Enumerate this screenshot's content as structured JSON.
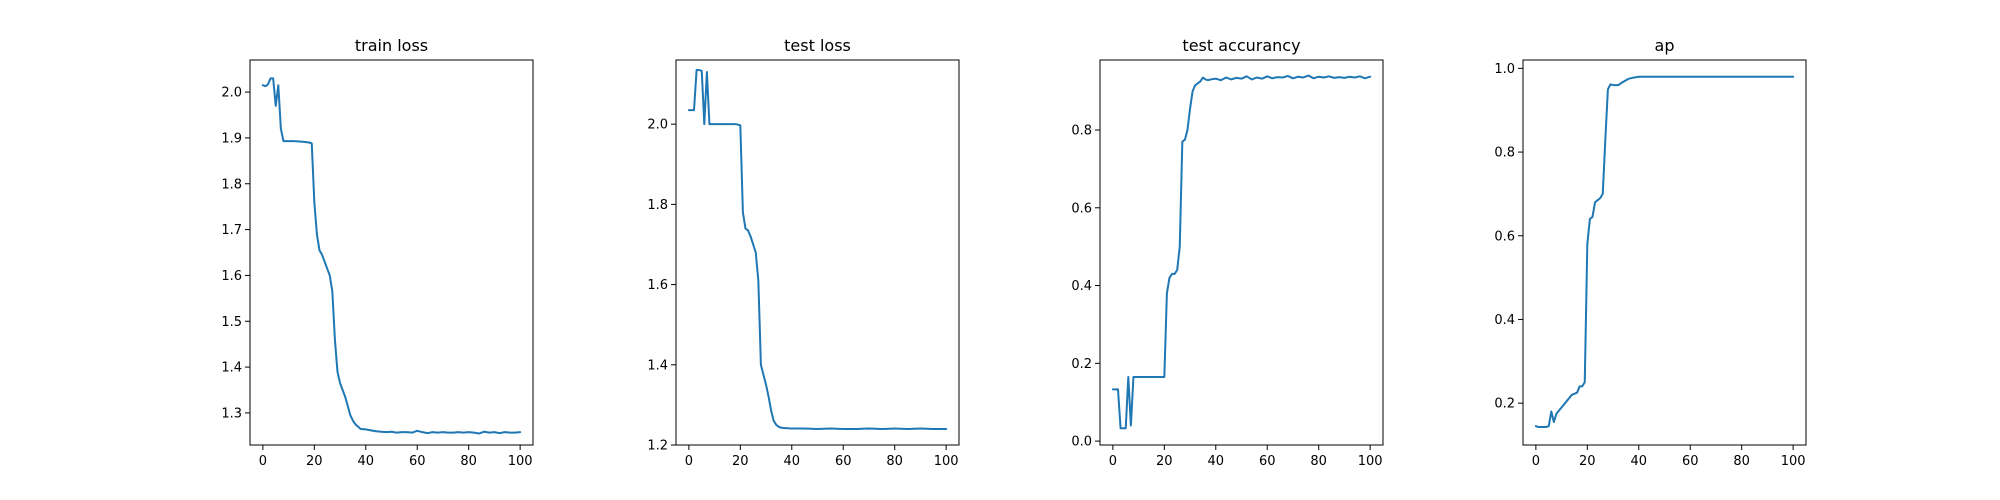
{
  "chart_data": [
    {
      "type": "line",
      "title": "train loss",
      "xlabel": "",
      "ylabel": "",
      "xlim": [
        -5,
        105
      ],
      "ylim": [
        1.23,
        2.07
      ],
      "xticks": [
        0,
        20,
        40,
        60,
        80,
        100
      ],
      "yticks": [
        1.3,
        1.4,
        1.5,
        1.6,
        1.7,
        1.8,
        1.9,
        2.0
      ],
      "tick_precision": 1,
      "grid": false,
      "color": "#1f77b4",
      "x": [
        0,
        1,
        2,
        3,
        4,
        5,
        6,
        7,
        8,
        9,
        10,
        12,
        15,
        18,
        19,
        20,
        21,
        22,
        23,
        24,
        25,
        26,
        27,
        28,
        29,
        30,
        31,
        32,
        33,
        34,
        35,
        36,
        37,
        38,
        40,
        42,
        44,
        46,
        48,
        50,
        52,
        54,
        56,
        58,
        60,
        62,
        64,
        66,
        68,
        70,
        72,
        74,
        76,
        78,
        80,
        82,
        84,
        86,
        88,
        90,
        92,
        94,
        96,
        98,
        100
      ],
      "y": [
        2.015,
        2.013,
        2.017,
        2.03,
        2.03,
        1.97,
        2.015,
        1.92,
        1.893,
        1.893,
        1.893,
        1.893,
        1.892,
        1.89,
        1.888,
        1.76,
        1.69,
        1.655,
        1.645,
        1.63,
        1.615,
        1.6,
        1.565,
        1.46,
        1.39,
        1.365,
        1.35,
        1.335,
        1.315,
        1.295,
        1.283,
        1.275,
        1.27,
        1.265,
        1.264,
        1.262,
        1.26,
        1.259,
        1.258,
        1.259,
        1.257,
        1.258,
        1.258,
        1.257,
        1.261,
        1.258,
        1.256,
        1.258,
        1.257,
        1.258,
        1.257,
        1.257,
        1.258,
        1.257,
        1.258,
        1.257,
        1.255,
        1.259,
        1.257,
        1.258,
        1.256,
        1.258,
        1.257,
        1.257,
        1.258
      ]
    },
    {
      "type": "line",
      "title": "test loss",
      "xlabel": "",
      "ylabel": "",
      "xlim": [
        -5,
        105
      ],
      "ylim": [
        1.2,
        2.16
      ],
      "xticks": [
        0,
        20,
        40,
        60,
        80,
        100
      ],
      "yticks": [
        1.2,
        1.4,
        1.6,
        1.8,
        2.0
      ],
      "tick_precision": 1,
      "grid": false,
      "color": "#1f77b4",
      "x": [
        0,
        1,
        2,
        3,
        4,
        5,
        6,
        7,
        8,
        10,
        12,
        15,
        18,
        19,
        20,
        21,
        22,
        23,
        24,
        25,
        26,
        27,
        28,
        29,
        30,
        31,
        32,
        33,
        34,
        35,
        36,
        37,
        38,
        40,
        45,
        50,
        55,
        60,
        65,
        70,
        75,
        80,
        85,
        90,
        95,
        100
      ],
      "y": [
        2.035,
        2.035,
        2.035,
        2.135,
        2.135,
        2.133,
        2.0,
        2.13,
        2.0,
        2.0,
        2.0,
        2.0,
        2.0,
        1.999,
        1.997,
        1.78,
        1.74,
        1.735,
        1.72,
        1.7,
        1.68,
        1.61,
        1.4,
        1.375,
        1.35,
        1.32,
        1.285,
        1.26,
        1.25,
        1.245,
        1.243,
        1.242,
        1.242,
        1.241,
        1.241,
        1.24,
        1.241,
        1.24,
        1.24,
        1.241,
        1.24,
        1.241,
        1.24,
        1.241,
        1.24,
        1.24
      ]
    },
    {
      "type": "line",
      "title": "test accurancy",
      "xlabel": "",
      "ylabel": "",
      "xlim": [
        -5,
        105
      ],
      "ylim": [
        -0.01,
        0.98
      ],
      "xticks": [
        0,
        20,
        40,
        60,
        80,
        100
      ],
      "yticks": [
        0.0,
        0.2,
        0.4,
        0.6,
        0.8
      ],
      "tick_precision": 1,
      "grid": false,
      "color": "#1f77b4",
      "x": [
        0,
        1,
        2,
        3,
        4,
        5,
        6,
        7,
        8,
        10,
        12,
        15,
        18,
        19,
        20,
        21,
        22,
        23,
        24,
        25,
        26,
        27,
        28,
        29,
        30,
        31,
        32,
        33,
        34,
        35,
        36,
        37,
        38,
        40,
        42,
        44,
        46,
        48,
        50,
        52,
        54,
        56,
        58,
        60,
        62,
        64,
        66,
        68,
        70,
        72,
        74,
        76,
        78,
        80,
        82,
        84,
        86,
        88,
        90,
        92,
        94,
        96,
        98,
        100
      ],
      "y": [
        0.133,
        0.133,
        0.133,
        0.033,
        0.033,
        0.033,
        0.165,
        0.04,
        0.165,
        0.165,
        0.165,
        0.165,
        0.165,
        0.165,
        0.165,
        0.38,
        0.42,
        0.43,
        0.43,
        0.44,
        0.5,
        0.77,
        0.775,
        0.8,
        0.855,
        0.9,
        0.915,
        0.92,
        0.925,
        0.935,
        0.93,
        0.928,
        0.93,
        0.932,
        0.928,
        0.935,
        0.93,
        0.934,
        0.932,
        0.938,
        0.93,
        0.935,
        0.932,
        0.938,
        0.933,
        0.936,
        0.935,
        0.939,
        0.933,
        0.937,
        0.935,
        0.94,
        0.933,
        0.937,
        0.935,
        0.938,
        0.934,
        0.936,
        0.934,
        0.937,
        0.935,
        0.938,
        0.933,
        0.937
      ]
    },
    {
      "type": "line",
      "title": "ap",
      "xlabel": "",
      "ylabel": "",
      "xlim": [
        -5,
        105
      ],
      "ylim": [
        0.1,
        1.02
      ],
      "xticks": [
        0,
        20,
        40,
        60,
        80,
        100
      ],
      "yticks": [
        0.2,
        0.4,
        0.6,
        0.8,
        1.0
      ],
      "tick_precision": 1,
      "grid": false,
      "color": "#1f77b4",
      "x": [
        0,
        1,
        2,
        3,
        4,
        5,
        6,
        7,
        8,
        10,
        12,
        14,
        16,
        17,
        18,
        19,
        20,
        21,
        22,
        23,
        24,
        25,
        26,
        27,
        28,
        29,
        30,
        31,
        32,
        34,
        36,
        38,
        40,
        45,
        50,
        55,
        60,
        65,
        70,
        75,
        80,
        85,
        90,
        95,
        100
      ],
      "y": [
        0.145,
        0.143,
        0.143,
        0.143,
        0.143,
        0.145,
        0.18,
        0.155,
        0.175,
        0.19,
        0.205,
        0.22,
        0.225,
        0.24,
        0.24,
        0.25,
        0.58,
        0.64,
        0.645,
        0.68,
        0.685,
        0.69,
        0.7,
        0.83,
        0.95,
        0.962,
        0.96,
        0.96,
        0.96,
        0.968,
        0.975,
        0.978,
        0.98,
        0.98,
        0.98,
        0.98,
        0.98,
        0.98,
        0.98,
        0.98,
        0.98,
        0.98,
        0.98,
        0.98,
        0.98
      ]
    }
  ]
}
